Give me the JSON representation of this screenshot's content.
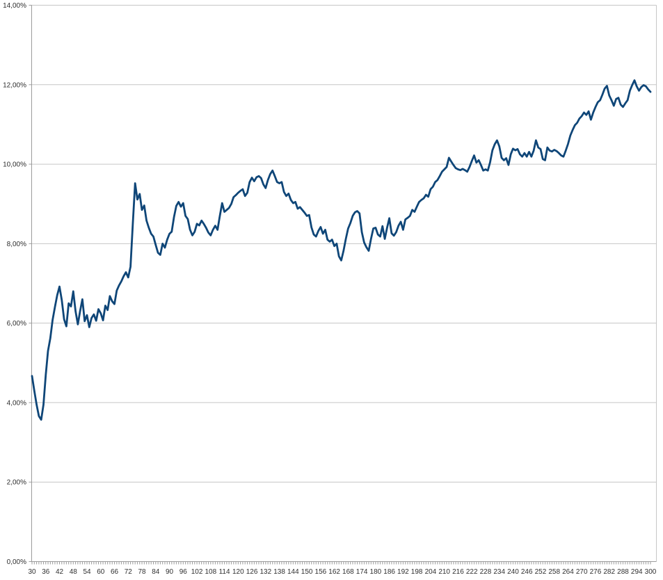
{
  "colors": {
    "background": "#ffffff",
    "gridline": "#c6c6c6",
    "axis": "#9b9b9b",
    "tick": "#9b9b9b",
    "label_text": "#2e2e2e",
    "series_line": "#0f4678"
  },
  "chart_data": {
    "type": "line",
    "title": "",
    "xlabel": "",
    "ylabel": "",
    "legend": "none",
    "grid": true,
    "xlim": [
      30,
      300
    ],
    "ylim": [
      0,
      14
    ],
    "x_start": 30,
    "x_step": 1,
    "x_label_step": 6,
    "y_tick_step": 2,
    "number_format": "percent-comma",
    "y_tick_labels": [
      "0,00%",
      "2,00%",
      "4,00%",
      "6,00%",
      "8,00%",
      "10,00%",
      "12,00%",
      "14,00%"
    ],
    "x_tick_labels": [
      "30",
      "36",
      "42",
      "48",
      "54",
      "60",
      "66",
      "72",
      "78",
      "84",
      "90",
      "96",
      "102",
      "108",
      "114",
      "120",
      "126",
      "132",
      "138",
      "144",
      "150",
      "156",
      "162",
      "168",
      "174",
      "180",
      "186",
      "192",
      "198",
      "204",
      "210",
      "216",
      "222",
      "228",
      "234",
      "240",
      "246",
      "252",
      "258",
      "264",
      "270",
      "276",
      "282",
      "288",
      "294",
      "300"
    ],
    "series": [
      {
        "name": "",
        "color": "#0f4678",
        "values": [
          4.67,
          4.3,
          3.95,
          3.66,
          3.57,
          3.95,
          4.7,
          5.3,
          5.62,
          6.08,
          6.4,
          6.7,
          6.92,
          6.58,
          6.1,
          5.92,
          6.5,
          6.42,
          6.8,
          6.3,
          5.97,
          6.3,
          6.6,
          6.05,
          6.2,
          5.9,
          6.13,
          6.22,
          6.06,
          6.35,
          6.25,
          6.07,
          6.44,
          6.33,
          6.68,
          6.55,
          6.48,
          6.82,
          6.95,
          7.05,
          7.18,
          7.28,
          7.15,
          7.42,
          8.5,
          9.52,
          9.11,
          9.25,
          8.85,
          8.96,
          8.58,
          8.4,
          8.25,
          8.18,
          7.97,
          7.77,
          7.72,
          8.0,
          7.9,
          8.1,
          8.25,
          8.3,
          8.67,
          8.95,
          9.05,
          8.93,
          9.02,
          8.7,
          8.62,
          8.35,
          8.21,
          8.3,
          8.5,
          8.46,
          8.58,
          8.5,
          8.4,
          8.28,
          8.21,
          8.35,
          8.45,
          8.35,
          8.7,
          9.02,
          8.8,
          8.85,
          8.9,
          9.0,
          9.17,
          9.22,
          9.28,
          9.33,
          9.37,
          9.2,
          9.28,
          9.55,
          9.66,
          9.57,
          9.67,
          9.7,
          9.65,
          9.49,
          9.4,
          9.6,
          9.75,
          9.84,
          9.7,
          9.55,
          9.52,
          9.55,
          9.3,
          9.2,
          9.26,
          9.1,
          9.02,
          9.05,
          8.88,
          8.92,
          8.85,
          8.78,
          8.7,
          8.72,
          8.41,
          8.23,
          8.18,
          8.32,
          8.42,
          8.25,
          8.35,
          8.1,
          8.05,
          8.1,
          7.94,
          8.0,
          7.68,
          7.58,
          7.82,
          8.12,
          8.38,
          8.52,
          8.7,
          8.79,
          8.82,
          8.76,
          8.29,
          8.03,
          7.91,
          7.82,
          8.12,
          8.38,
          8.4,
          8.23,
          8.18,
          8.44,
          8.12,
          8.4,
          8.64,
          8.26,
          8.2,
          8.29,
          8.45,
          8.55,
          8.35,
          8.61,
          8.65,
          8.7,
          8.85,
          8.8,
          8.93,
          9.05,
          9.1,
          9.14,
          9.23,
          9.18,
          9.37,
          9.43,
          9.55,
          9.6,
          9.7,
          9.81,
          9.87,
          9.93,
          10.16,
          10.07,
          9.98,
          9.9,
          9.87,
          9.85,
          9.88,
          9.85,
          9.81,
          9.93,
          10.08,
          10.22,
          10.04,
          10.1,
          9.98,
          9.84,
          9.87,
          9.84,
          10.05,
          10.35,
          10.5,
          10.6,
          10.45,
          10.16,
          10.1,
          10.15,
          9.98,
          10.25,
          10.39,
          10.35,
          10.38,
          10.25,
          10.19,
          10.28,
          10.19,
          10.31,
          10.19,
          10.34,
          10.6,
          10.42,
          10.38,
          10.13,
          10.1,
          10.42,
          10.34,
          10.32,
          10.36,
          10.33,
          10.28,
          10.22,
          10.19,
          10.34,
          10.51,
          10.72,
          10.86,
          10.98,
          11.04,
          11.15,
          11.21,
          11.3,
          11.24,
          11.33,
          11.12,
          11.3,
          11.44,
          11.56,
          11.61,
          11.75,
          11.9,
          11.97,
          11.73,
          11.61,
          11.47,
          11.64,
          11.67,
          11.5,
          11.44,
          11.53,
          11.61,
          11.85,
          11.99,
          12.11,
          11.96,
          11.85,
          11.94,
          11.99,
          11.96,
          11.88,
          11.82
        ]
      }
    ]
  }
}
